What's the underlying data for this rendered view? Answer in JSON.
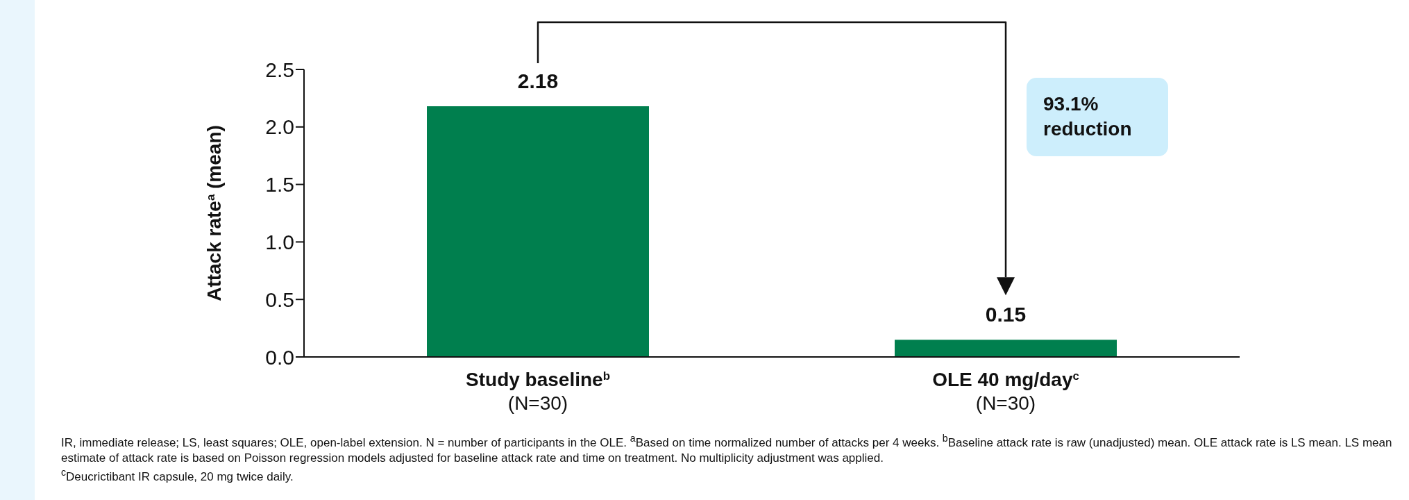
{
  "chart_data": {
    "type": "bar",
    "ylabel": "Attack rate$^{a}$ (mean)",
    "categories": [
      "Study baseline$^{b}$\n(N=30)",
      "OLE  40 mg/day$^{c}$\n(N=30)"
    ],
    "values": [
      2.18,
      0.15
    ],
    "colors": [
      "#007f4e",
      "#007f4e"
    ],
    "ylim": [
      0,
      2.5
    ],
    "yticks": [
      {
        "value": 0,
        "label": "0.0"
      },
      {
        "value": 0.5,
        "label": "0.5"
      },
      {
        "value": 1,
        "label": "1.0"
      },
      {
        "value": 1.5,
        "label": "1.5"
      },
      {
        "value": 2,
        "label": "2.0"
      },
      {
        "value": 2.5,
        "label": "2.5"
      }
    ],
    "data_labels": true,
    "annotations": [
      "93.1% reduction",
      "IR, immediate release; LS, least squares; OLE, open-label extension. N = number of participants in the OLE. $^{a}$Based on time normalized number of attacks per 4 weeks. $^{b}$Baseline attack rate is raw (unadjusted) mean. OLE attack rate is LS mean. LS mean estimate of attack rate is based on Poisson regression models adjusted for baseline attack rate and time on treatment. No multiplicity adjustment was applied.",
      "$^{c}$Deucrictibant IR capsule, 20 mg twice daily."
    ]
  }
}
